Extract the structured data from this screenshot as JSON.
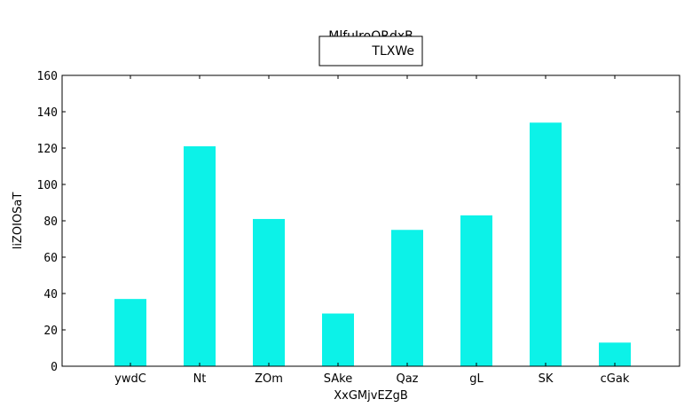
{
  "chart_data": {
    "type": "bar",
    "title": "MlfuJroQRdxB",
    "xlabel": "XxGMjvEZgB",
    "ylabel": "liZOIOSaT",
    "categories": [
      "ywdC",
      "Nt",
      "ZOm",
      "SAke",
      "Qaz",
      "gL",
      "SK",
      "cGak"
    ],
    "series": [
      {
        "name": "TLXWe",
        "values": [
          37,
          121,
          81,
          29,
          75,
          83,
          134,
          13
        ],
        "color": "#0cf2e8"
      }
    ],
    "ylim": [
      0,
      160
    ],
    "yticks": [
      0,
      20,
      40,
      60,
      80,
      100,
      120,
      140,
      160
    ],
    "grid": false,
    "legend": "top-center"
  }
}
